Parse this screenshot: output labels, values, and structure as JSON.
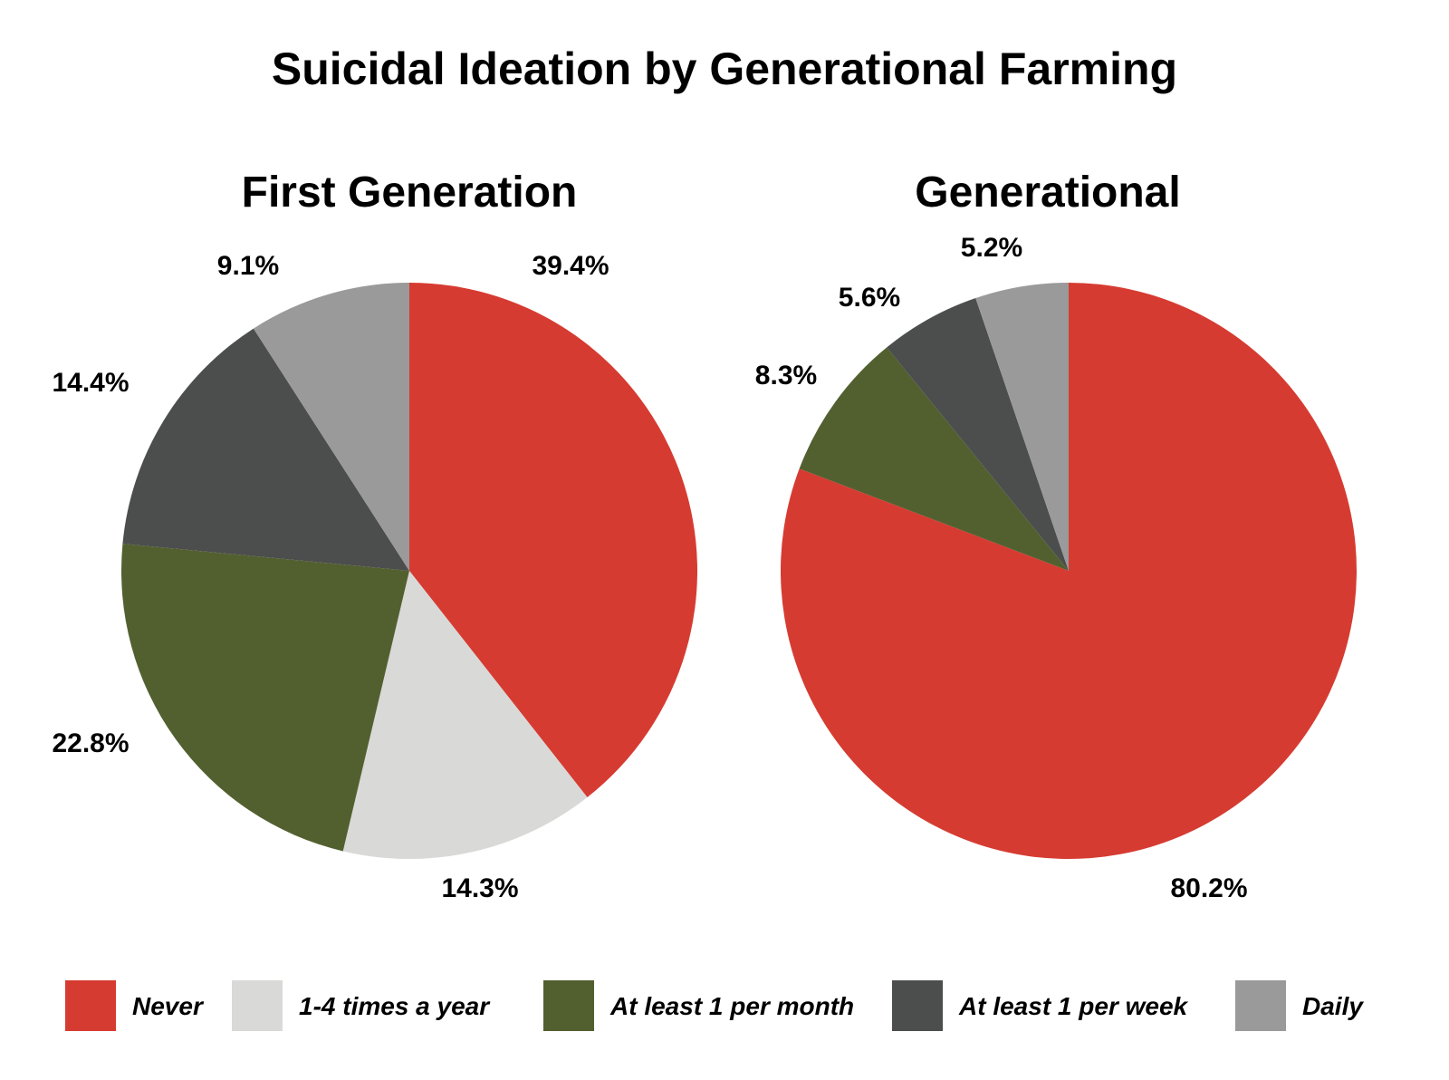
{
  "chart_data": {
    "type": "pie",
    "title": "Suicidal Ideation by Generational Farming",
    "legend": {
      "placement": "bottom",
      "entries": [
        {
          "name": "Never",
          "color": "#d63b31"
        },
        {
          "name": "1-4 times a year",
          "color": "#d9d9d8"
        },
        {
          "name": "At least 1 per month",
          "color": "#526030"
        },
        {
          "name": "At least 1 per week",
          "color": "#4c4d4d"
        },
        {
          "name": "Daily",
          "color": "#9a9a9a"
        }
      ]
    },
    "pies": [
      {
        "title": "First Generation",
        "slices": [
          {
            "category": "Never",
            "value": 39.4,
            "label": "39.4%"
          },
          {
            "category": "1-4 times a year",
            "value": 14.3,
            "label": "14.3%"
          },
          {
            "category": "At least 1 per month",
            "value": 22.8,
            "label": "22.8%"
          },
          {
            "category": "At least 1 per week",
            "value": 14.4,
            "label": "14.4%"
          },
          {
            "category": "Daily",
            "value": 9.1,
            "label": "9.1%"
          }
        ]
      },
      {
        "title": "Generational",
        "slices": [
          {
            "category": "Never",
            "value": 80.2,
            "label": "80.2%"
          },
          {
            "category": "1-4 times a year",
            "value": 0,
            "label": ""
          },
          {
            "category": "At least 1 per month",
            "value": 8.3,
            "label": "8.3%"
          },
          {
            "category": "At least 1 per week",
            "value": 5.6,
            "label": "5.6%"
          },
          {
            "category": "Daily",
            "value": 5.2,
            "label": "5.2%"
          }
        ]
      }
    ]
  }
}
